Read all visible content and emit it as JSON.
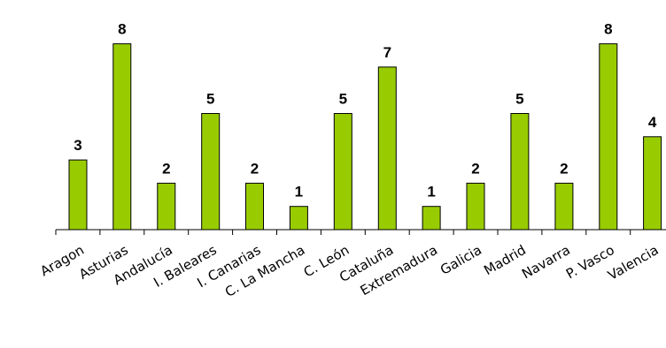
{
  "chart_data": {
    "type": "bar",
    "title": "",
    "xlabel": "",
    "ylabel": "",
    "categories": [
      "Aragon",
      "Asturias",
      "Andalucía",
      "I. Baleares",
      "I. Canarias",
      "C. La Mancha",
      "C. León",
      "Cataluña",
      "Extremadura",
      "Galicia",
      "Madrid",
      "Navarra",
      "P. Vasco",
      "Valencia"
    ],
    "values": [
      3,
      8,
      2,
      5,
      2,
      1,
      5,
      7,
      1,
      2,
      5,
      2,
      8,
      4
    ],
    "ylim": [
      0,
      8
    ],
    "grid": false,
    "bar_color": "#99cc00",
    "data_labels": true
  }
}
